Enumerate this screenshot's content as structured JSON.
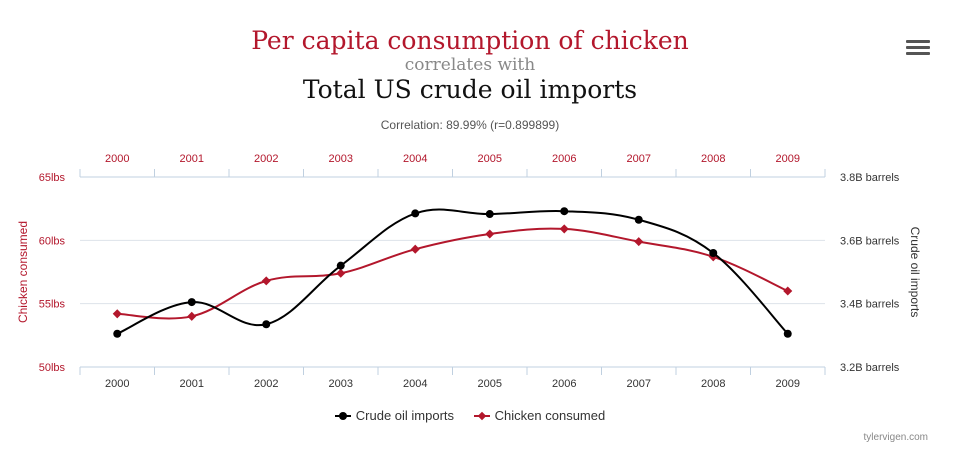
{
  "header": {
    "title_a": "Per capita consumption of chicken",
    "connector": "correlates with",
    "title_b": "Total US crude oil imports",
    "correlation": "Correlation: 89.99% (r=0.899899)"
  },
  "credit": "tylervigen.com",
  "colors": {
    "chicken": "#b3172c",
    "oil": "#000000",
    "grid": "#dde3ea",
    "axis": "#c0d0e0"
  },
  "chart_data": {
    "type": "line",
    "x": [
      "2000",
      "2001",
      "2002",
      "2003",
      "2004",
      "2005",
      "2006",
      "2007",
      "2008",
      "2009"
    ],
    "series": [
      {
        "name": "Crude oil imports",
        "axis": "right",
        "marker": "circle",
        "values": [
          3.305,
          3.405,
          3.335,
          3.52,
          3.685,
          3.683,
          3.692,
          3.665,
          3.56,
          3.305
        ]
      },
      {
        "name": "Chicken consumed",
        "axis": "left",
        "marker": "diamond",
        "values": [
          54.2,
          54.0,
          56.8,
          57.4,
          59.3,
          60.5,
          60.9,
          59.9,
          58.7,
          56.0
        ]
      }
    ],
    "ylabel_left": "Chicken consumed",
    "ylabel_right": "Crude oil imports",
    "ylim_left": [
      50,
      65
    ],
    "ylim_right": [
      3.2,
      3.8
    ],
    "yticks_left": [
      "65lbs",
      "60lbs",
      "55lbs",
      "50lbs"
    ],
    "yticks_left_values": [
      65,
      60,
      55,
      50
    ],
    "yticks_right": [
      "3.8B barrels",
      "3.6B barrels",
      "3.4B barrels",
      "3.2B barrels"
    ],
    "yticks_right_values": [
      3.8,
      3.6,
      3.4,
      3.2
    ],
    "grid": true,
    "legend_position": "bottom-center"
  }
}
